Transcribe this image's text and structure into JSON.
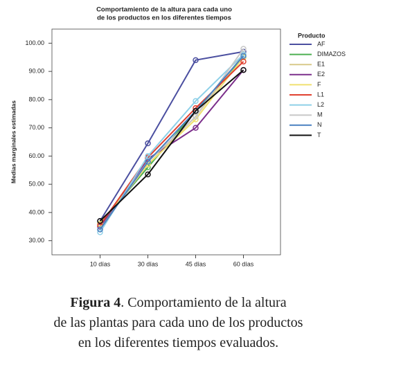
{
  "chart_data": {
    "type": "line",
    "title": [
      "Comportamiento de la altura para cada uno",
      "de los productos en los diferentes tiempos"
    ],
    "y_label": "Medias marginales estimadas",
    "categories": [
      "10 días",
      "30 días",
      "45 días",
      "60 días"
    ],
    "ylim": [
      25,
      105
    ],
    "yticks": [
      {
        "value": 30,
        "label": "30.00"
      },
      {
        "value": 40,
        "label": "40.00"
      },
      {
        "value": 50,
        "label": "50.00"
      },
      {
        "value": 60,
        "label": "60.00"
      },
      {
        "value": 70,
        "label": "70.00"
      },
      {
        "value": 80,
        "label": "80.00"
      },
      {
        "value": 90,
        "label": "90.00"
      },
      {
        "value": 100,
        "label": "100.00"
      }
    ],
    "legend_title": "Producto",
    "legend": "right",
    "series": [
      {
        "name": "AF",
        "color": "#4b4fa0",
        "values": [
          37,
          64.5,
          94,
          97
        ]
      },
      {
        "name": "DIMAZOS",
        "color": "#4caf50",
        "values": [
          36,
          56,
          76,
          95
        ]
      },
      {
        "name": "E1",
        "color": "#d8c98a",
        "values": [
          35,
          57,
          74,
          96
        ]
      },
      {
        "name": "E2",
        "color": "#7b2e8a",
        "values": [
          35,
          59,
          70,
          90.5
        ]
      },
      {
        "name": "F",
        "color": "#f0e070",
        "values": [
          36,
          57,
          73,
          95
        ]
      },
      {
        "name": "L1",
        "color": "#e04030",
        "values": [
          35.5,
          59.5,
          77,
          93.5
        ]
      },
      {
        "name": "L2",
        "color": "#8ed0e8",
        "values": [
          33,
          60,
          79.5,
          96
        ]
      },
      {
        "name": "M",
        "color": "#c8c8c8",
        "values": [
          34,
          58,
          74,
          98
        ]
      },
      {
        "name": "N",
        "color": "#4a80c0",
        "values": [
          34,
          58,
          76,
          95.5
        ]
      },
      {
        "name": "T",
        "color": "#111111",
        "values": [
          37,
          53.5,
          76,
          90.5
        ]
      }
    ]
  },
  "caption": {
    "label": "Figura 4",
    "lines": [
      ". Comportamiento de la altura",
      "de las plantas para cada uno de los productos",
      "en los diferentes tiempos evaluados."
    ]
  }
}
